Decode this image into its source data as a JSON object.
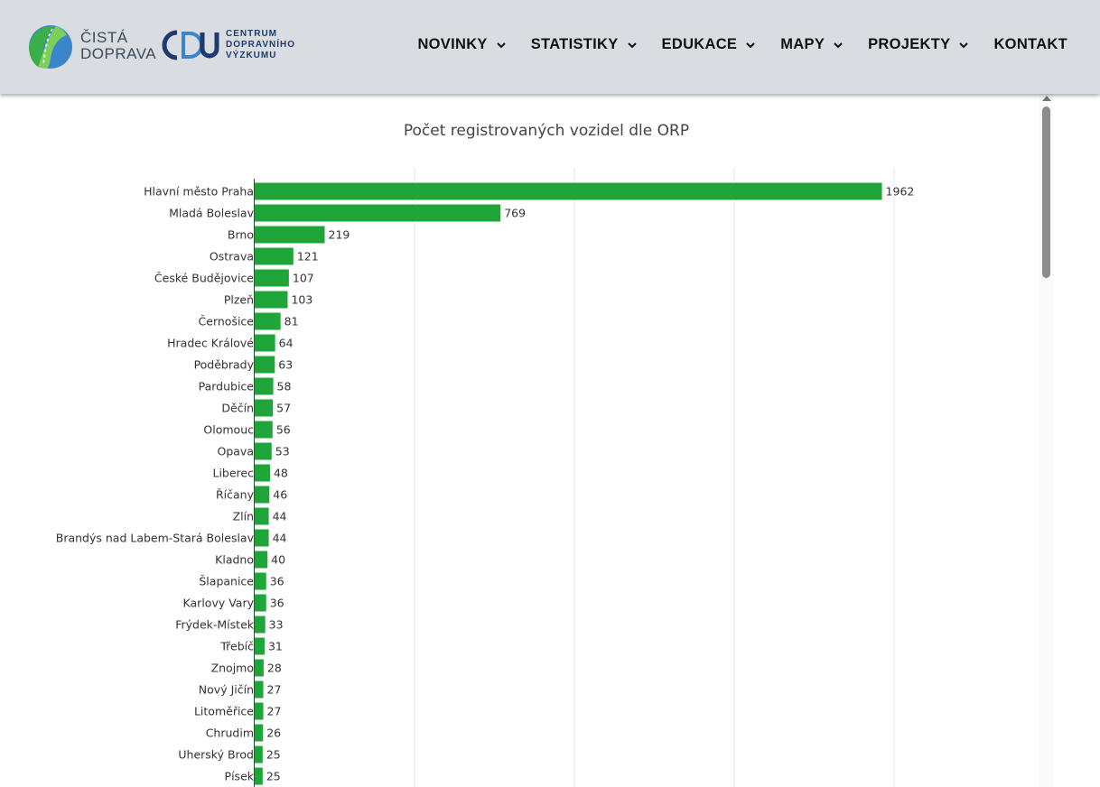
{
  "header": {
    "logo_left_line1": "ČISTÁ",
    "logo_left_line2": "DOPRAVA",
    "logo_right_line1": "CENTRUM",
    "logo_right_line2": "DOPRAVNÍHO",
    "logo_right_line3": "VÝZKUMU",
    "nav": [
      {
        "label": "NOVINKY",
        "has_dropdown": true
      },
      {
        "label": "STATISTIKY",
        "has_dropdown": true
      },
      {
        "label": "EDUKACE",
        "has_dropdown": true
      },
      {
        "label": "MAPY",
        "has_dropdown": true
      },
      {
        "label": "PROJEKTY",
        "has_dropdown": true
      },
      {
        "label": "KONTAKT",
        "has_dropdown": false
      }
    ]
  },
  "colors": {
    "bar": "#1fa53a",
    "header_bg": "#d9dde2",
    "grid": "#e6e6e6"
  },
  "chart_data": {
    "type": "bar",
    "orientation": "horizontal",
    "title": "Počet registrovaných vozidel dle ORP",
    "xlabel": "",
    "ylabel": "",
    "xlim": [
      0,
      2000
    ],
    "grid": true,
    "categories": [
      "Hlavní město Praha",
      "Mladá Boleslav",
      "Brno",
      "Ostrava",
      "České Budějovice",
      "Plzeň",
      "Černošice",
      "Hradec Králové",
      "Poděbrady",
      "Pardubice",
      "Děčín",
      "Olomouc",
      "Opava",
      "Liberec",
      "Říčany",
      "Zlín",
      "Brandýs nad Labem-Stará Boleslav",
      "Kladno",
      "Šlapanice",
      "Karlovy Vary",
      "Frýdek-Místek",
      "Třebíč",
      "Znojmo",
      "Nový Jičín",
      "Litoměřice",
      "Chrudim",
      "Uherský Brod",
      "Písek"
    ],
    "values": [
      1962,
      769,
      219,
      121,
      107,
      103,
      81,
      64,
      63,
      58,
      57,
      56,
      53,
      48,
      46,
      44,
      44,
      40,
      36,
      36,
      33,
      31,
      28,
      27,
      27,
      26,
      25,
      25
    ]
  }
}
